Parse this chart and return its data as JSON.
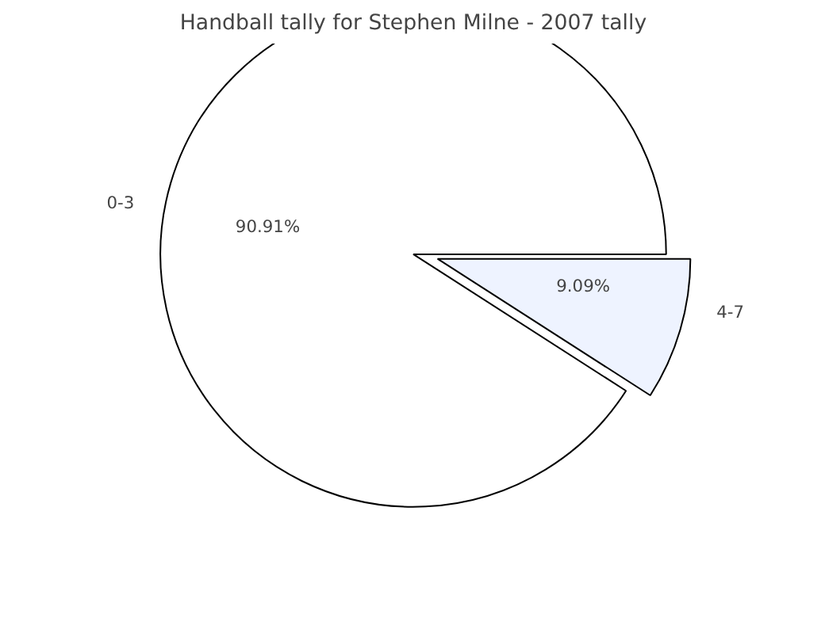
{
  "chart_data": {
    "type": "pie",
    "title": "Handball tally for Stephen Milne - 2007 tally",
    "categories": [
      "0-3",
      "4-7"
    ],
    "values": [
      90.91,
      9.09
    ],
    "colors": [
      "#ffffff",
      "#eef3ff"
    ],
    "value_labels": [
      "90.91%",
      "9.09%"
    ]
  }
}
